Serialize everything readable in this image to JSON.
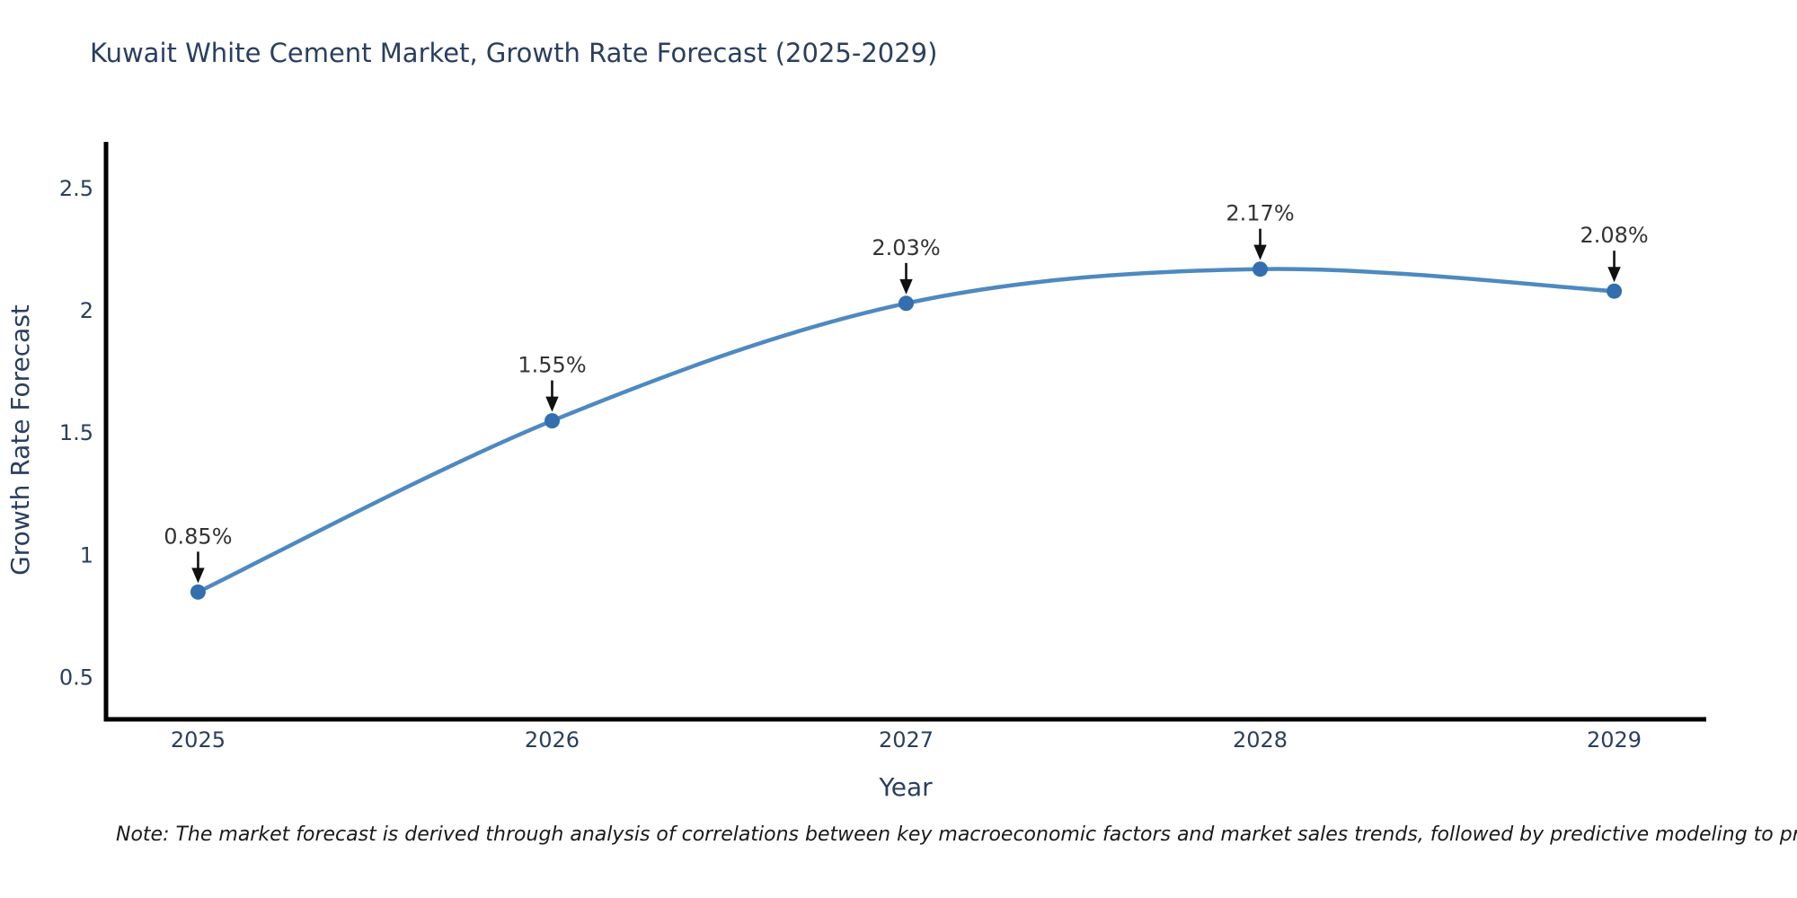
{
  "chart_data": {
    "type": "line",
    "title": "Kuwait White Cement Market, Growth Rate Forecast (2025-2029)",
    "xlabel": "Year",
    "ylabel": "Growth Rate Forecast",
    "x": [
      2025,
      2026,
      2027,
      2028,
      2029
    ],
    "y": [
      0.85,
      1.55,
      2.03,
      2.17,
      2.08
    ],
    "point_labels": [
      "0.85%",
      "1.55%",
      "2.03%",
      "2.17%",
      "2.08%"
    ],
    "x_tick_labels": [
      "2025",
      "2026",
      "2027",
      "2028",
      "2029"
    ],
    "y_tick_values": [
      0.5,
      1,
      1.5,
      2,
      2.5
    ],
    "y_tick_labels": [
      "0.5",
      "1",
      "1.5",
      "2",
      "2.5"
    ],
    "xlim": [
      2024.74,
      2029.26
    ],
    "ylim": [
      0.33,
      2.69
    ],
    "line_shape": "spline",
    "grid": false,
    "legend_position": "none",
    "colors": {
      "line": "#4e89c0",
      "marker": "#336fae",
      "axis": "#000000",
      "tick_text": "#2a3f5f",
      "annotation_text": "#333333",
      "arrow": "#111111",
      "title_text": "#2a3f5f",
      "background": "#ffffff"
    }
  },
  "note": {
    "text": "Note: The market forecast is derived through analysis of correlations between key macroeconomic factors and market sales trends, followed by predictive modeling to project future sales"
  }
}
